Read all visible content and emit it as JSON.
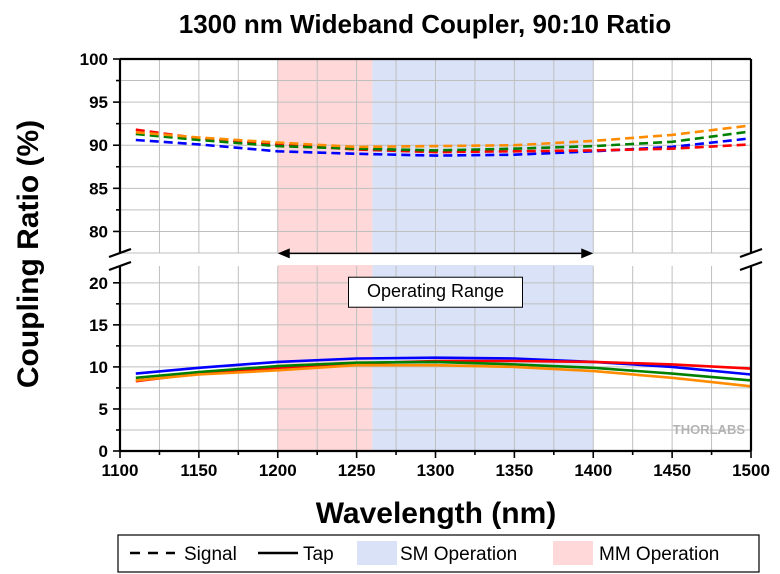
{
  "chart_data": {
    "type": "line",
    "title": "1300 nm Wideband Coupler, 90:10 Ratio",
    "xlabel": "Wavelength (nm)",
    "ylabel": "Coupling Ratio (%)",
    "xlim": [
      1100,
      1500
    ],
    "x_ticks": [
      1100,
      1150,
      1200,
      1250,
      1300,
      1350,
      1400,
      1450,
      1500
    ],
    "upper_panel": {
      "ylim": [
        77.5,
        100
      ],
      "y_ticks": [
        80,
        85,
        90,
        95,
        100
      ]
    },
    "lower_panel": {
      "ylim": [
        0,
        22
      ],
      "y_ticks": [
        0,
        5,
        10,
        15,
        20
      ]
    },
    "grid": true,
    "x": [
      1110,
      1150,
      1200,
      1250,
      1300,
      1350,
      1400,
      1450,
      1500
    ],
    "series": [
      {
        "type": "signal",
        "color": "#0000ff",
        "values": [
          90.6,
          90.1,
          89.3,
          89.0,
          88.8,
          88.9,
          89.3,
          89.8,
          90.8
        ]
      },
      {
        "type": "signal",
        "color": "#ff0000",
        "values": [
          91.8,
          90.8,
          90.1,
          89.5,
          89.2,
          89.3,
          89.4,
          89.6,
          90.1
        ]
      },
      {
        "type": "signal",
        "color": "#008000",
        "values": [
          91.3,
          90.6,
          89.9,
          89.6,
          89.4,
          89.6,
          89.9,
          90.4,
          91.6
        ]
      },
      {
        "type": "signal",
        "color": "#ff8c00",
        "values": [
          91.5,
          90.9,
          90.3,
          89.8,
          89.9,
          90.0,
          90.5,
          91.2,
          92.3
        ]
      },
      {
        "type": "tap",
        "color": "#0000ff",
        "values": [
          9.2,
          9.9,
          10.6,
          11.0,
          11.1,
          11.0,
          10.6,
          10.0,
          9.1
        ]
      },
      {
        "type": "tap",
        "color": "#ff0000",
        "values": [
          8.3,
          9.2,
          9.9,
          10.4,
          10.7,
          10.7,
          10.6,
          10.3,
          9.8
        ]
      },
      {
        "type": "tap",
        "color": "#008000",
        "values": [
          8.7,
          9.4,
          10.1,
          10.5,
          10.6,
          10.3,
          9.9,
          9.2,
          8.4
        ]
      },
      {
        "type": "tap",
        "color": "#ff8c00",
        "values": [
          8.4,
          9.1,
          9.6,
          10.2,
          10.2,
          10.0,
          9.5,
          8.7,
          7.7
        ]
      }
    ],
    "regions": [
      {
        "name": "MM Operation",
        "from": 1200,
        "to": 1260,
        "color": "#ffd9d9"
      },
      {
        "name": "SM Operation",
        "from": 1260,
        "to": 1400,
        "color": "#d9e2f7"
      }
    ],
    "range_arrow": {
      "from": 1200,
      "to": 1400,
      "y": 23.5
    },
    "annotation": {
      "text": "Operating Range",
      "x": 1300,
      "y": 19
    },
    "watermark": "THORLABS",
    "legend": {
      "placement": "bottom",
      "items": [
        {
          "label": "Signal",
          "style": "dashed"
        },
        {
          "label": "Tap",
          "style": "solid"
        },
        {
          "label": "SM Operation",
          "style": "fill",
          "color": "#d9e2f7"
        },
        {
          "label": "MM Operation",
          "style": "fill",
          "color": "#ffd9d9"
        }
      ]
    }
  }
}
